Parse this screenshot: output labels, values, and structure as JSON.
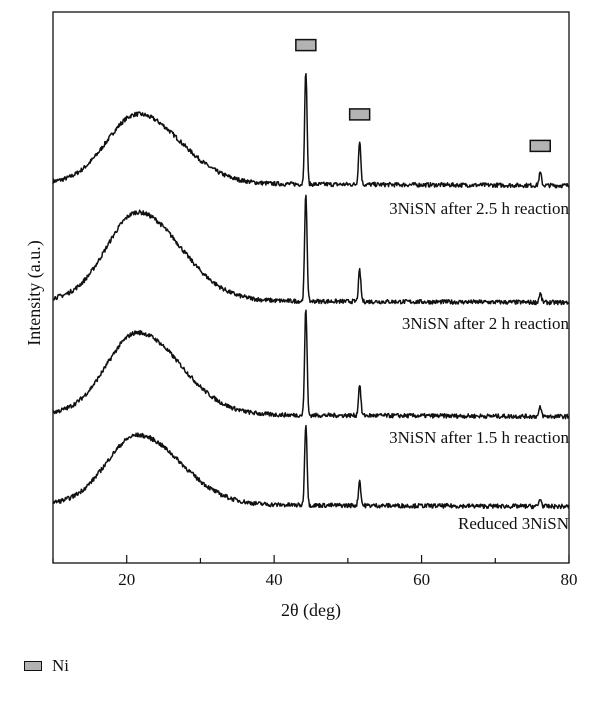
{
  "chart_data": {
    "type": "line",
    "xlabel": "2θ (deg)",
    "ylabel": "Intensity (a.u.)",
    "xlim": [
      10,
      80
    ],
    "x_ticks": [
      20,
      40,
      60,
      80
    ],
    "y_tick_labels": false,
    "grid": false,
    "series": [
      {
        "name": "3NiSN after 2.5 h reaction",
        "baseline": 0,
        "broad_peak": {
          "center": 21.5,
          "height": 0.55
        },
        "peaks": [
          {
            "two_theta": 44.3,
            "height": 0.9
          },
          {
            "two_theta": 51.6,
            "height": 0.35
          },
          {
            "two_theta": 76.1,
            "height": 0.1
          }
        ]
      },
      {
        "name": "3NiSN after 2 h reaction",
        "baseline": 0,
        "broad_peak": {
          "center": 21.5,
          "height": 0.7
        },
        "peaks": [
          {
            "two_theta": 44.3,
            "height": 0.85
          },
          {
            "two_theta": 51.6,
            "height": 0.25
          },
          {
            "two_theta": 76.1,
            "height": 0.07
          }
        ]
      },
      {
        "name": "3NiSN after 1.5 h reaction",
        "baseline": 0,
        "broad_peak": {
          "center": 21.5,
          "height": 0.65
        },
        "peaks": [
          {
            "two_theta": 44.3,
            "height": 0.85
          },
          {
            "two_theta": 51.6,
            "height": 0.25
          },
          {
            "two_theta": 76.1,
            "height": 0.07
          }
        ]
      },
      {
        "name": "Reduced 3NiSN",
        "baseline": 0,
        "broad_peak": {
          "center": 21.5,
          "height": 0.55
        },
        "peaks": [
          {
            "two_theta": 44.3,
            "height": 0.65
          },
          {
            "two_theta": 51.6,
            "height": 0.2
          },
          {
            "two_theta": 76.1,
            "height": 0.06
          }
        ]
      }
    ],
    "markers": [
      {
        "label": "Ni",
        "two_theta": 44.3
      },
      {
        "label": "Ni",
        "two_theta": 51.6
      },
      {
        "label": "Ni",
        "two_theta": 76.1
      }
    ],
    "legend": {
      "label": "Ni",
      "position": "bottom-left"
    },
    "colors": {
      "line": "#111111",
      "marker_fill": "#b3b3b3"
    }
  }
}
